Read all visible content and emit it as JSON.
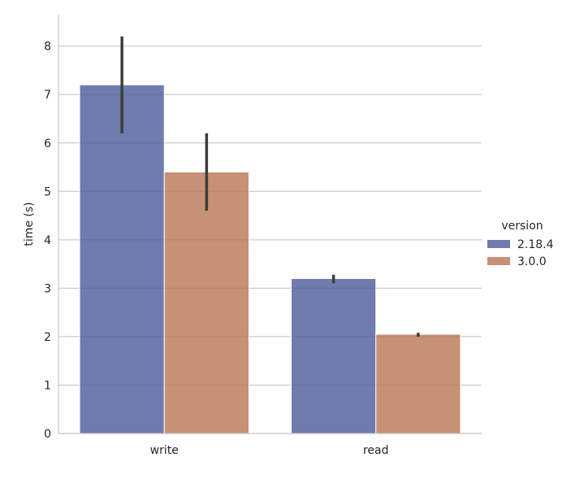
{
  "chart_data": {
    "type": "bar",
    "categories": [
      "write",
      "read"
    ],
    "series": [
      {
        "name": "2.18.4",
        "values": [
          7.2,
          3.2
        ],
        "err_low": [
          6.2,
          3.1
        ],
        "err_high": [
          8.2,
          3.28
        ],
        "color": "#4c5a9a"
      },
      {
        "name": "3.0.0",
        "values": [
          5.4,
          2.05
        ],
        "err_low": [
          4.6,
          2.0
        ],
        "err_high": [
          6.2,
          2.08
        ],
        "color": "#b87652"
      }
    ],
    "xlabel": "",
    "ylabel": "time (s)",
    "ylim": [
      0,
      8.65
    ],
    "yticks": [
      "0",
      "1",
      "2",
      "3",
      "4",
      "5",
      "6",
      "7",
      "8"
    ],
    "legend_title": "version",
    "legend_position": "right",
    "grid": "horizontal"
  }
}
